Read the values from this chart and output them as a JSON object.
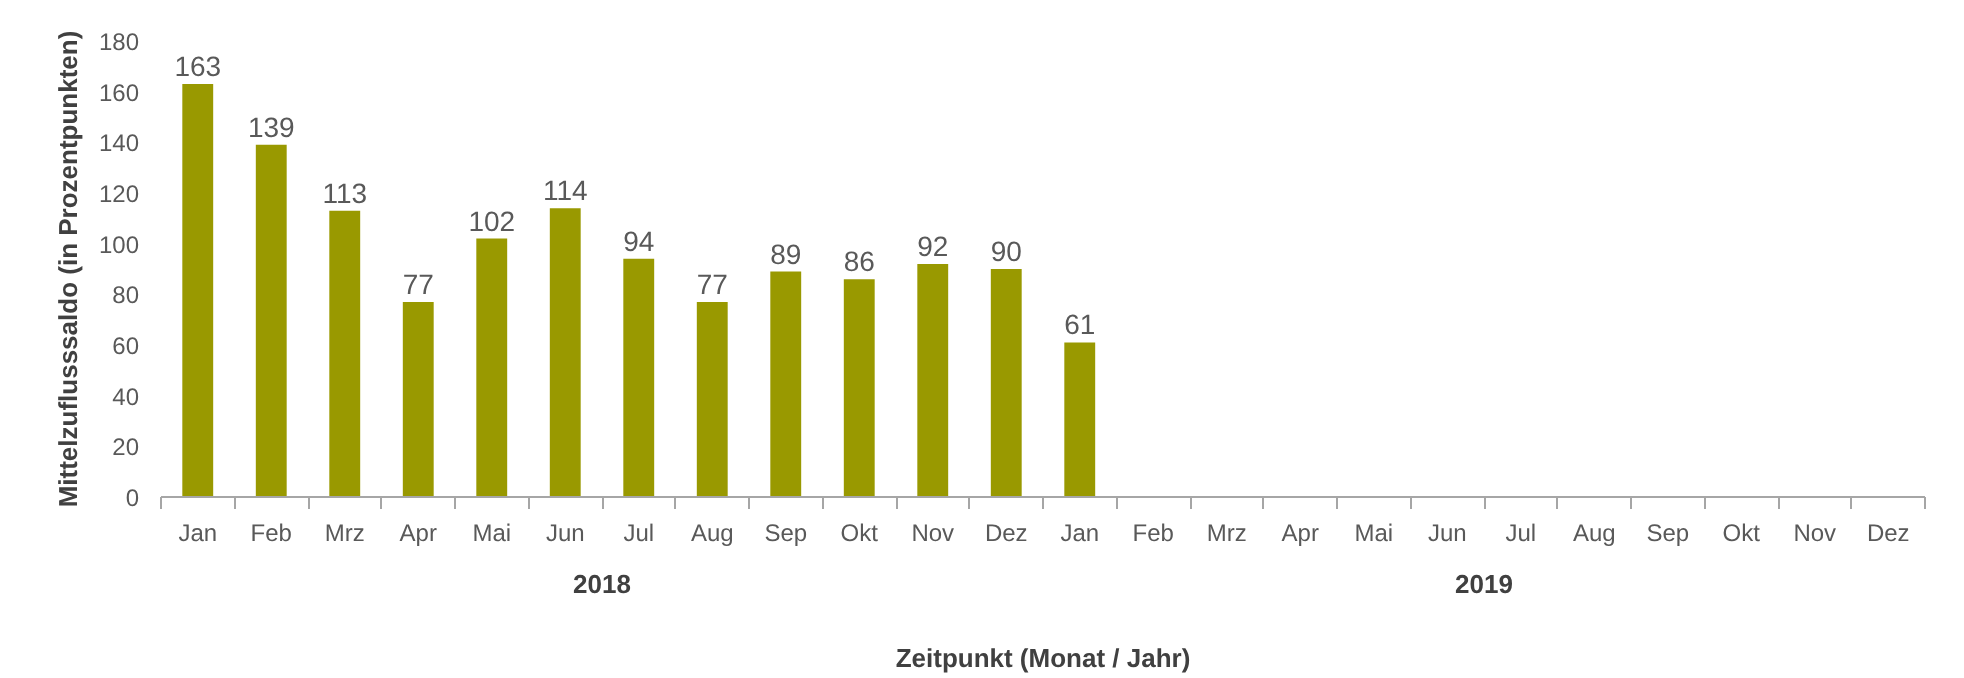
{
  "chart_data": {
    "type": "bar",
    "categories": [
      "Jan",
      "Feb",
      "Mrz",
      "Apr",
      "Mai",
      "Jun",
      "Jul",
      "Aug",
      "Sep",
      "Okt",
      "Nov",
      "Dez",
      "Jan",
      "Feb",
      "Mrz",
      "Apr",
      "Mai",
      "Jun",
      "Jul",
      "Aug",
      "Sep",
      "Okt",
      "Nov",
      "Dez"
    ],
    "values": [
      163,
      139,
      113,
      77,
      102,
      114,
      94,
      77,
      89,
      86,
      92,
      90,
      61,
      null,
      null,
      null,
      null,
      null,
      null,
      null,
      null,
      null,
      null,
      null
    ],
    "color": "#999900",
    "ylim": [
      0,
      180
    ],
    "yticks": [
      0,
      20,
      40,
      60,
      80,
      100,
      120,
      140,
      160,
      180
    ],
    "ylabel": "Mittelzuflusssaldo (in Prozentpunkten)",
    "xlabel": "Zeitpunkt (Monat / Jahr)",
    "annotations": [
      "2018",
      "2019"
    ],
    "data_labels": true,
    "grid": false
  }
}
